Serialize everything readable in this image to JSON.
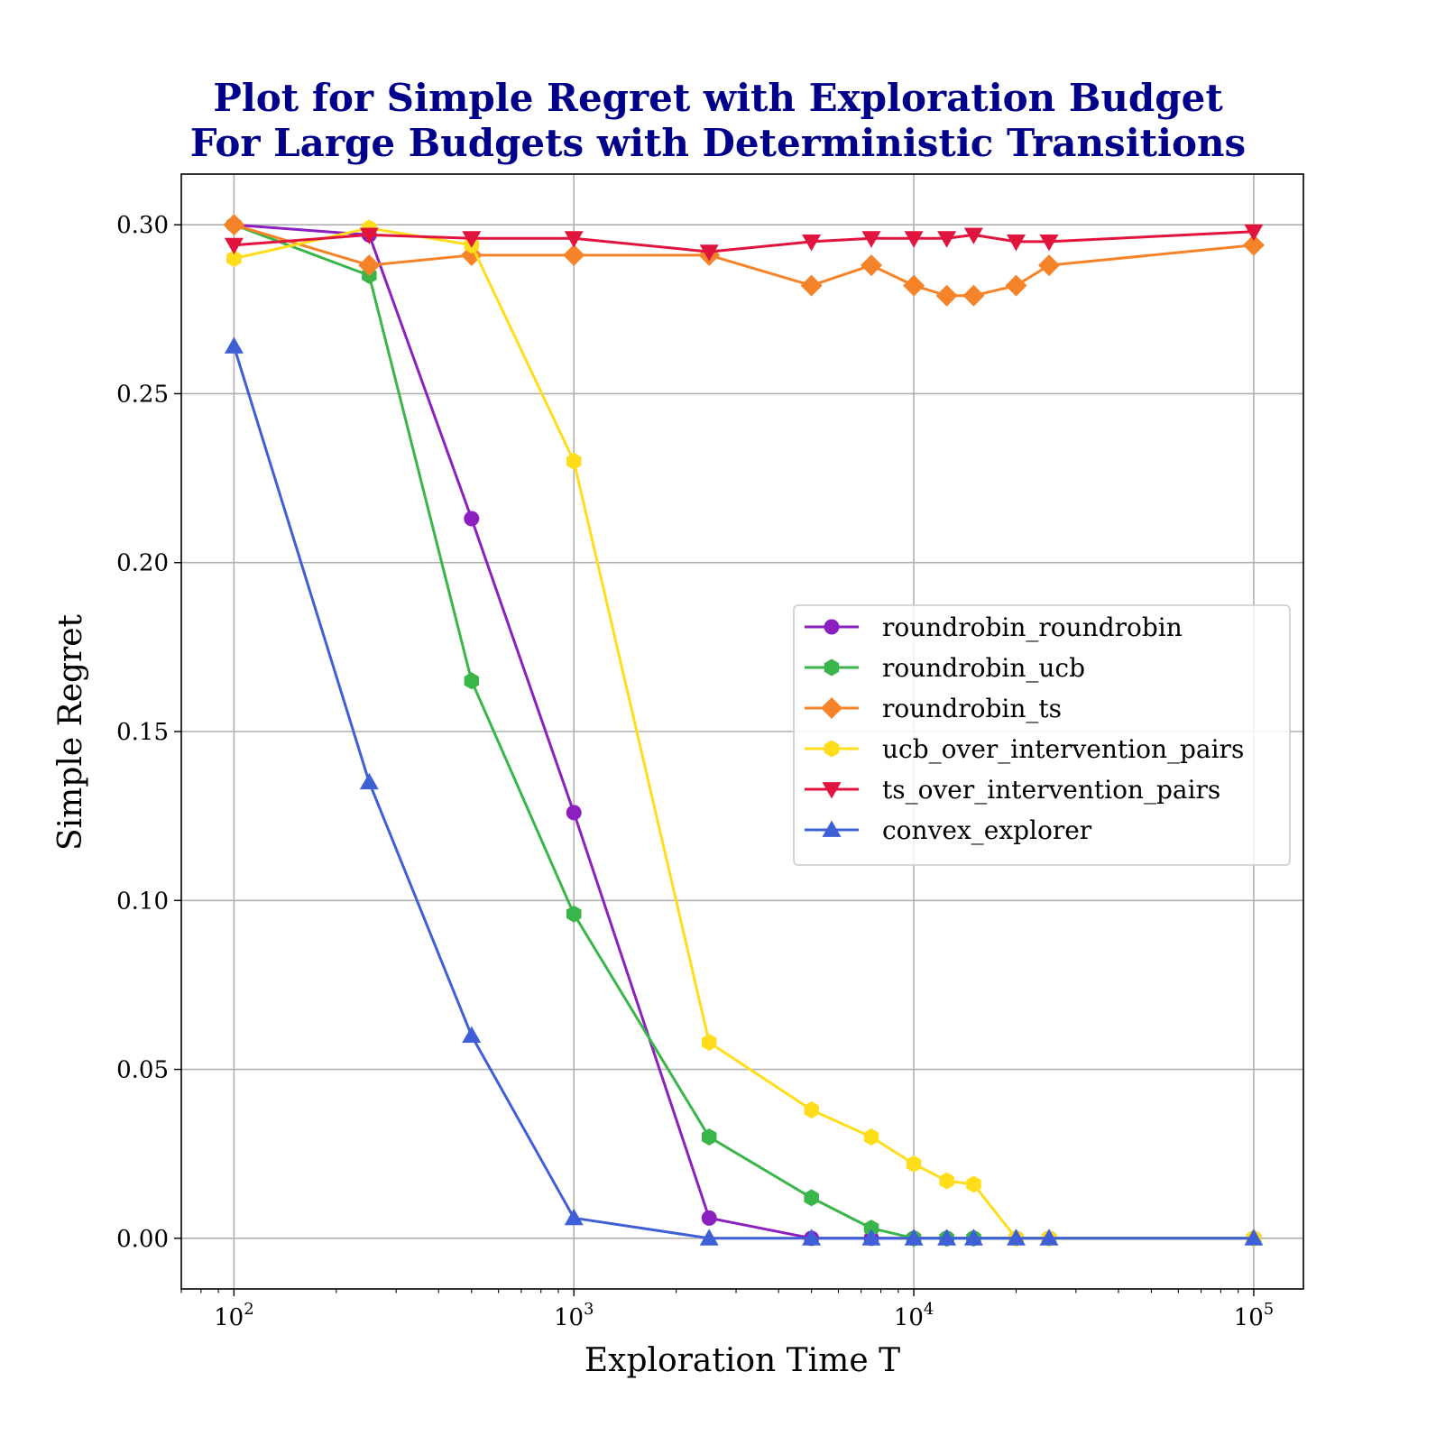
{
  "chart_data": {
    "type": "line",
    "title_lines": [
      "Plot for Simple Regret with Exploration Budget",
      "For Large Budgets with Deterministic Transitions"
    ],
    "xlabel": "Exploration Time T",
    "ylabel": "Simple Regret",
    "xscale": "log",
    "xlim": [
      70,
      140000
    ],
    "ylim": [
      -0.015,
      0.315
    ],
    "grid": true,
    "legend_position": "center-right",
    "x_ticks": [
      {
        "value": 100,
        "base": "10",
        "exp": "2"
      },
      {
        "value": 1000,
        "base": "10",
        "exp": "3"
      },
      {
        "value": 10000,
        "base": "10",
        "exp": "4"
      },
      {
        "value": 100000,
        "base": "10",
        "exp": "5"
      }
    ],
    "y_ticks": [
      {
        "value": 0.0,
        "label": "0.00"
      },
      {
        "value": 0.05,
        "label": "0.05"
      },
      {
        "value": 0.1,
        "label": "0.10"
      },
      {
        "value": 0.15,
        "label": "0.15"
      },
      {
        "value": 0.2,
        "label": "0.20"
      },
      {
        "value": 0.25,
        "label": "0.25"
      },
      {
        "value": 0.3,
        "label": "0.30"
      }
    ],
    "series": [
      {
        "name": "roundrobin_roundrobin",
        "color": "#8b1fbf",
        "marker": "circle",
        "x": [
          100,
          250,
          500,
          1000,
          2500,
          5000,
          7500,
          10000,
          12500,
          15000,
          20000,
          25000,
          100000
        ],
        "y": [
          0.3,
          0.297,
          0.213,
          0.126,
          0.006,
          0.0,
          0.0,
          0.0,
          0.0,
          0.0,
          0.0,
          0.0,
          0.0
        ]
      },
      {
        "name": "roundrobin_ucb",
        "color": "#39b54a",
        "marker": "hexagon",
        "x": [
          100,
          250,
          500,
          1000,
          2500,
          5000,
          7500,
          10000,
          12500,
          15000,
          20000,
          25000,
          100000
        ],
        "y": [
          0.3,
          0.285,
          0.165,
          0.096,
          0.03,
          0.012,
          0.003,
          0.0,
          0.0,
          0.0,
          0.0,
          0.0,
          0.0
        ]
      },
      {
        "name": "roundrobin_ts",
        "color": "#f5832a",
        "marker": "diamond",
        "x": [
          100,
          250,
          500,
          1000,
          2500,
          5000,
          7500,
          10000,
          12500,
          15000,
          20000,
          25000,
          100000
        ],
        "y": [
          0.3,
          0.288,
          0.291,
          0.291,
          0.291,
          0.282,
          0.288,
          0.282,
          0.279,
          0.279,
          0.282,
          0.288,
          0.294
        ]
      },
      {
        "name": "ucb_over_intervention_pairs",
        "color": "#ffdd1a",
        "marker": "hexagon",
        "x": [
          100,
          250,
          500,
          1000,
          2500,
          5000,
          7500,
          10000,
          12500,
          15000,
          20000,
          25000,
          100000
        ],
        "y": [
          0.29,
          0.299,
          0.294,
          0.23,
          0.058,
          0.038,
          0.03,
          0.022,
          0.017,
          0.016,
          0.0,
          0.0,
          0.0
        ]
      },
      {
        "name": "ts_over_intervention_pairs",
        "color": "#e0143c",
        "marker": "triangle-down",
        "x": [
          100,
          250,
          500,
          1000,
          2500,
          5000,
          7500,
          10000,
          12500,
          15000,
          20000,
          25000,
          100000
        ],
        "y": [
          0.294,
          0.297,
          0.296,
          0.296,
          0.292,
          0.295,
          0.296,
          0.296,
          0.296,
          0.297,
          0.295,
          0.295,
          0.298
        ]
      },
      {
        "name": "convex_explorer",
        "color": "#3f5fd6",
        "marker": "triangle-up",
        "x": [
          100,
          250,
          500,
          1000,
          2500,
          5000,
          7500,
          10000,
          12500,
          15000,
          20000,
          25000,
          100000
        ],
        "y": [
          0.264,
          0.135,
          0.06,
          0.006,
          0.0,
          0.0,
          0.0,
          0.0,
          0.0,
          0.0,
          0.0,
          0.0,
          0.0
        ]
      }
    ]
  }
}
